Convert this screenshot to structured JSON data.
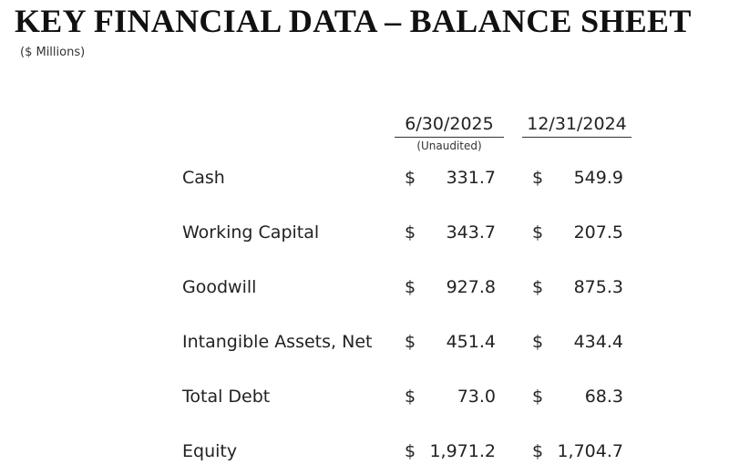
{
  "header": {
    "title": "KEY FINANCIAL DATA – BALANCE SHEET",
    "subtitle": "($ Millions)"
  },
  "table": {
    "columns": [
      {
        "label": "6/30/2025",
        "note": "(Unaudited)"
      },
      {
        "label": "12/31/2024"
      }
    ],
    "currency": "$",
    "rows": [
      [
        "Cash",
        "331.7",
        "549.9"
      ],
      [
        "Working Capital",
        "343.7",
        "207.5"
      ],
      [
        "Goodwill",
        "927.8",
        "875.3"
      ],
      [
        "Intangible Assets, Net",
        "451.4",
        "434.4"
      ],
      [
        "Total Debt",
        "73.0",
        "68.3"
      ],
      [
        "Equity",
        "1,971.2",
        "1,704.7"
      ]
    ]
  }
}
